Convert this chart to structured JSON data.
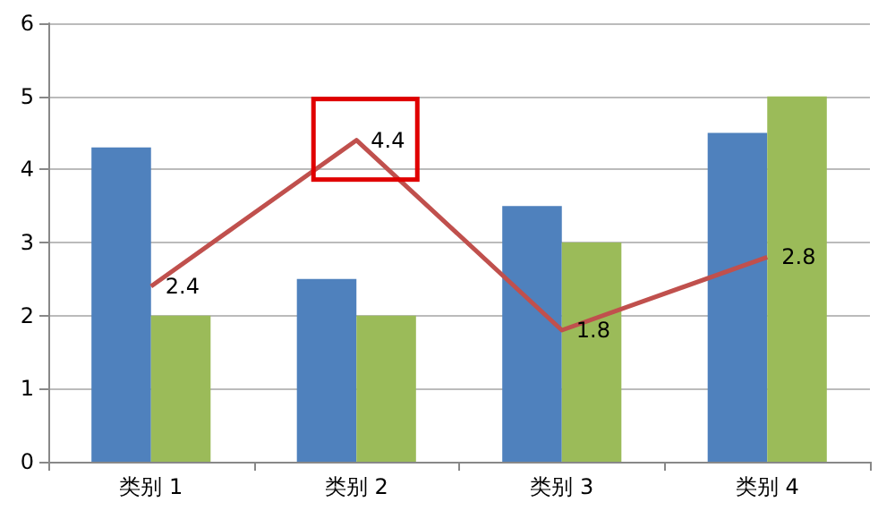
{
  "chart_data": {
    "type": "bar",
    "categories": [
      "类别 1",
      "类别 2",
      "类别 3",
      "类别 4"
    ],
    "series": [
      {
        "color": "#4f81bd",
        "values": [
          4.3,
          2.5,
          3.5,
          4.5
        ]
      },
      {
        "color": "#9bbb59",
        "values": [
          2,
          2,
          3,
          5
        ]
      },
      {
        "type": "line",
        "color": "#c0504d",
        "values": [
          2.4,
          4.4,
          1.8,
          2.8
        ],
        "value_labels": [
          "2.4",
          "4.4",
          "1.8",
          "2.8"
        ]
      }
    ],
    "ylim": [
      0,
      6
    ],
    "yticks": [
      0,
      1,
      2,
      3,
      4,
      5,
      6
    ],
    "grid": "y",
    "marker": "none"
  }
}
